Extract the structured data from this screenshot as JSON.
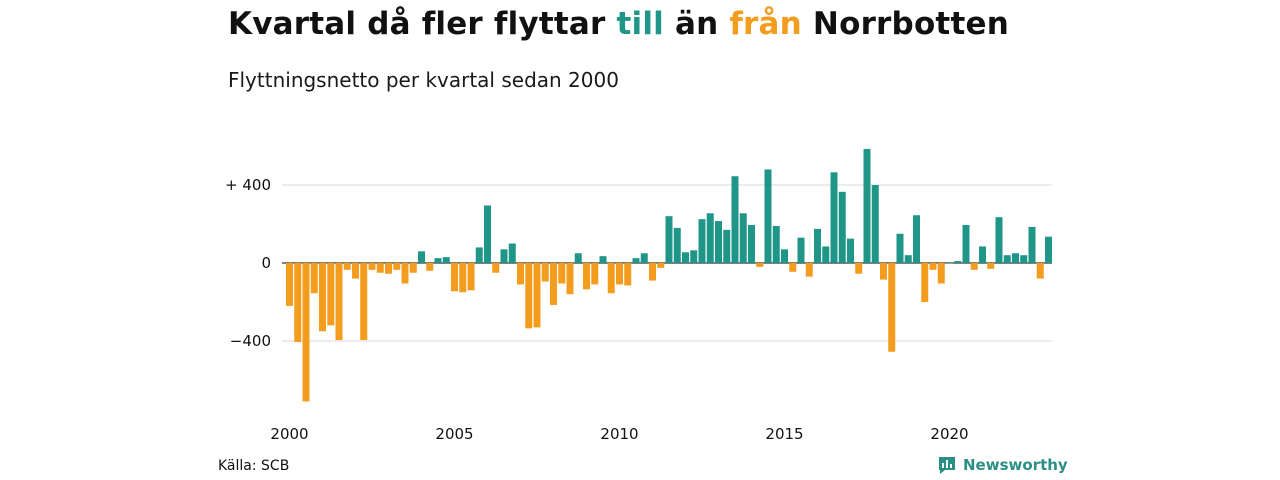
{
  "header": {
    "title_parts": [
      "Kvartal då fler flyttar ",
      "till",
      " än ",
      "från",
      " Norrbotten"
    ],
    "subtitle": "Flyttningsnetto per kvartal sedan 2000"
  },
  "footer": {
    "source": "Källa: SCB",
    "brand": "Newsworthy"
  },
  "colors": {
    "positive": "#1f9688",
    "negative": "#f39c1e",
    "brand": "#2a8f84",
    "grid": "#d9d9d9"
  },
  "chart_data": {
    "type": "bar",
    "xlabel": "",
    "ylabel": "",
    "ylim": [
      -720,
      600
    ],
    "y_ticks": [
      {
        "value": 400,
        "label": "+ 400"
      },
      {
        "value": 0,
        "label": "0"
      },
      {
        "value": -400,
        "label": "−400"
      }
    ],
    "x_ticks": [
      {
        "value": 2000,
        "label": "2000"
      },
      {
        "value": 2005,
        "label": "2005"
      },
      {
        "value": 2010,
        "label": "2010"
      },
      {
        "value": 2015,
        "label": "2015"
      },
      {
        "value": 2020,
        "label": "2020"
      }
    ],
    "start_year": 2000,
    "grid": true,
    "legend": "none",
    "values": [
      -220,
      -405,
      -710,
      -155,
      -350,
      -320,
      -395,
      -35,
      -80,
      -395,
      -35,
      -50,
      -55,
      -35,
      -105,
      -50,
      60,
      -40,
      25,
      30,
      -145,
      -150,
      -140,
      80,
      295,
      -50,
      70,
      100,
      -110,
      -335,
      -330,
      -95,
      -215,
      -105,
      -160,
      50,
      -135,
      -110,
      35,
      -155,
      -110,
      -115,
      25,
      50,
      -90,
      -25,
      240,
      180,
      55,
      65,
      225,
      255,
      215,
      170,
      445,
      255,
      195,
      -20,
      480,
      190,
      70,
      -45,
      130,
      -70,
      175,
      85,
      465,
      365,
      125,
      -55,
      585,
      400,
      -85,
      -455,
      150,
      40,
      245,
      -200,
      -35,
      -105,
      0,
      10,
      195,
      -35,
      85,
      -30,
      235,
      40,
      50,
      40,
      185,
      -80,
      135
    ]
  }
}
